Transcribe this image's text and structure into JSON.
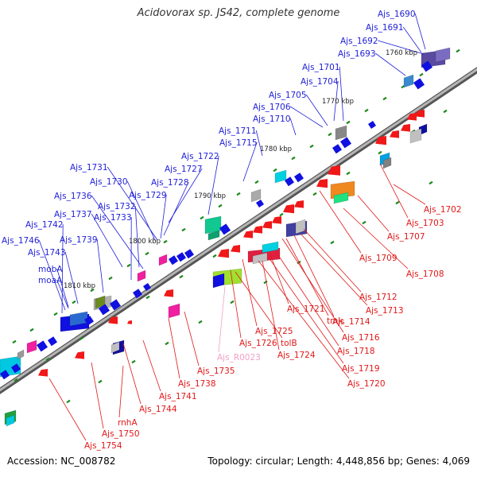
{
  "title": "Acidovorax sp. JS42, complete genome",
  "footer": {
    "accession": "Accession: NC_008782",
    "topology": "Topology: circular; Length: 4,448,856 bp; Genes: 4,069"
  },
  "colors": {
    "backbone": "#8a8a8a",
    "forward_label": "#1f1fd8",
    "reverse_label": "#e01818",
    "rna_label": "#f0a0c8",
    "tick": "#1a8a1a"
  },
  "scale_labels": [
    "1760 kbp",
    "1770 kbp",
    "1780 kbp",
    "1790 kbp",
    "1800 kbp",
    "1810 kbp"
  ],
  "forward_genes": [
    "Ajs_1690",
    "Ajs_1691",
    "Ajs_1692",
    "Ajs_1693",
    "Ajs_1701",
    "Ajs_1704",
    "Ajs_1705",
    "Ajs_1706",
    "Ajs_1710",
    "Ajs_1711",
    "Ajs_1715",
    "Ajs_1722",
    "Ajs_1727",
    "Ajs_1728",
    "Ajs_1729",
    "Ajs_1731",
    "Ajs_1730",
    "Ajs_1736",
    "Ajs_1732",
    "Ajs_1733",
    "Ajs_1737",
    "Ajs_1742",
    "Ajs_1739",
    "Ajs_1746",
    "Ajs_1743",
    "mobA",
    "moaA"
  ],
  "reverse_genes": [
    "Ajs_1702",
    "Ajs_1703",
    "Ajs_1707",
    "Ajs_1709",
    "Ajs_1708",
    "Ajs_1712",
    "Ajs_1713",
    "Ajs_1721",
    "Ajs_1714",
    "tmk",
    "Ajs_1725",
    "Ajs_1716",
    "tolB",
    "Ajs_1726",
    "Ajs_1724",
    "Ajs_1718",
    "Ajs_R0023",
    "Ajs_1719",
    "Ajs_1735",
    "Ajs_1720",
    "Ajs_1738",
    "Ajs_1741",
    "Ajs_1744",
    "rnhA",
    "Ajs_1750",
    "Ajs_1754"
  ]
}
